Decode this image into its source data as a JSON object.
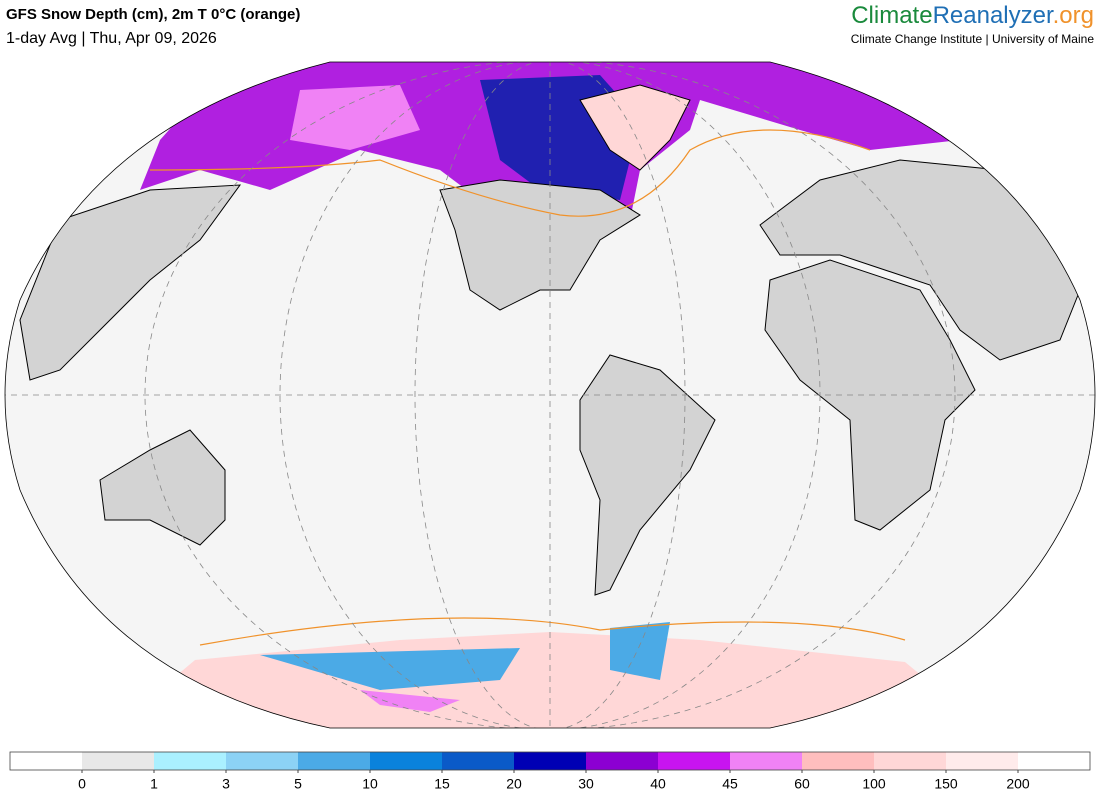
{
  "header": {
    "title": "GFS Snow Depth (cm), 2m T 0°C (orange)",
    "subtitle": "1-day Avg | Thu, Apr 09, 2026"
  },
  "brand": {
    "parts": [
      {
        "text": "Climate",
        "color": "#1a8a3c"
      },
      {
        "text": "Reanalyzer",
        "color": "#1f6fb5"
      },
      {
        "text": ".org",
        "color": "#f0922b"
      }
    ],
    "tagline": "Climate Change Institute | University of Maine"
  },
  "colorbar": {
    "ticks": [
      0,
      1,
      3,
      5,
      10,
      15,
      20,
      30,
      40,
      45,
      60,
      100,
      150,
      200
    ],
    "colors": [
      "#ffffff",
      "#e8e8e8",
      "#aaf0ff",
      "#8cd2f5",
      "#4baae6",
      "#0a82dc",
      "#0a5ac8",
      "#0000b4",
      "#8c00d2",
      "#c814f0",
      "#f082f5",
      "#ffbebe",
      "#ffd7d7",
      "#ffebeb",
      "#ffffff"
    ]
  }
}
